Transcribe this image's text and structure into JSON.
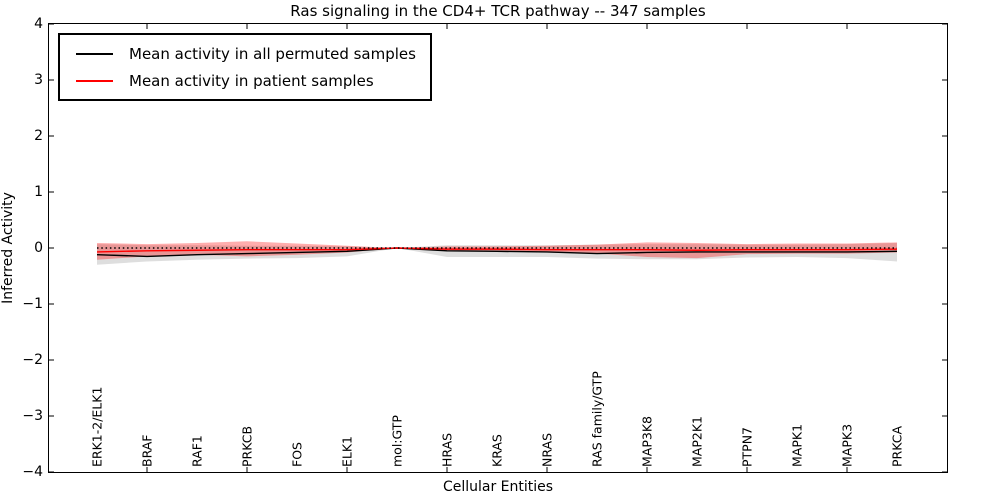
{
  "chart_data": {
    "type": "line",
    "title": "Ras signaling in the CD4+ TCR pathway -- 347 samples",
    "xlabel": "Cellular Entities",
    "ylabel": "Inferred Activity",
    "ylim": [
      -4,
      4
    ],
    "grid": false,
    "legend_position": "upper left",
    "ytick_values": [
      4,
      3,
      2,
      1,
      0,
      -1,
      -2,
      -3,
      -4
    ],
    "ytick_labels": [
      "4",
      "3",
      "2",
      "1",
      "0",
      "−1",
      "−2",
      "−3",
      "−4"
    ],
    "categories": [
      "ERK1-2/ELK1",
      "BRAF",
      "RAF1",
      "PRKCB",
      "FOS",
      "ELK1",
      "mol:GTP",
      "HRAS",
      "KRAS",
      "NRAS",
      "RAS family/GTP",
      "MAP3K8",
      "MAP2K1",
      "PTPN7",
      "MAPK1",
      "MAPK3",
      "PRKCA"
    ],
    "zero_line": {
      "value": 0,
      "style": "dotted",
      "color": "#000000"
    },
    "series": [
      {
        "name": "Mean activity in all permuted samples",
        "color": "#000000",
        "band_color": "rgba(0,0,0,0.13)",
        "values": [
          -0.12,
          -0.15,
          -0.12,
          -0.1,
          -0.08,
          -0.06,
          0.0,
          -0.05,
          -0.06,
          -0.07,
          -0.1,
          -0.08,
          -0.07,
          -0.07,
          -0.07,
          -0.07,
          -0.06
        ],
        "band_upper": [
          0.07,
          0.05,
          0.05,
          0.04,
          0.04,
          0.03,
          0.0,
          0.05,
          0.05,
          0.05,
          0.06,
          0.07,
          0.07,
          0.06,
          0.06,
          0.07,
          0.09
        ],
        "band_lower": [
          -0.3,
          -0.24,
          -0.21,
          -0.19,
          -0.18,
          -0.15,
          0.0,
          -0.16,
          -0.16,
          -0.16,
          -0.19,
          -0.2,
          -0.2,
          -0.17,
          -0.16,
          -0.18,
          -0.24
        ]
      },
      {
        "name": "Mean activity in patient samples",
        "color": "#ff0000",
        "band_color": "rgba(255,0,0,0.32)",
        "values": [
          -0.07,
          -0.05,
          -0.04,
          -0.03,
          -0.03,
          -0.03,
          0.0,
          -0.02,
          -0.02,
          -0.03,
          -0.03,
          -0.03,
          -0.04,
          -0.03,
          -0.03,
          -0.03,
          -0.02
        ],
        "band_upper": [
          0.09,
          0.07,
          0.09,
          0.12,
          0.08,
          0.04,
          0.0,
          0.03,
          0.03,
          0.04,
          0.06,
          0.1,
          0.09,
          0.07,
          0.08,
          0.08,
          0.1
        ],
        "band_lower": [
          -0.21,
          -0.15,
          -0.12,
          -0.15,
          -0.12,
          -0.08,
          0.0,
          -0.05,
          -0.06,
          -0.08,
          -0.1,
          -0.16,
          -0.18,
          -0.11,
          -0.1,
          -0.1,
          -0.08
        ]
      }
    ]
  }
}
